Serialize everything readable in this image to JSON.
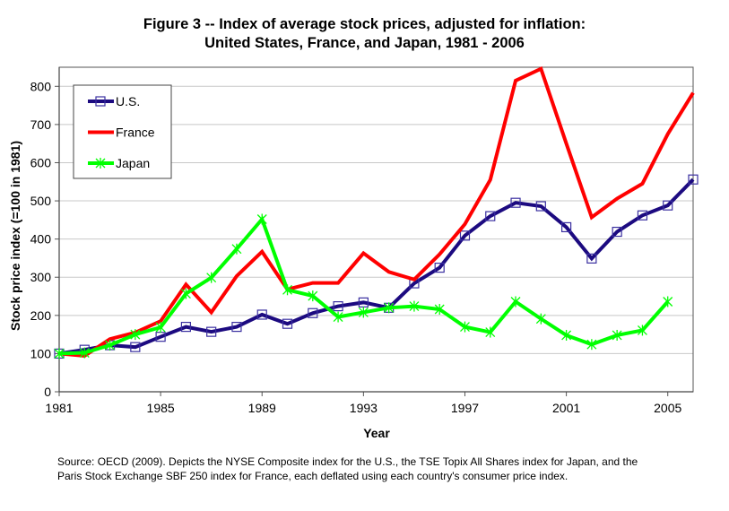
{
  "chart_data": {
    "type": "line",
    "title": "Figure 3 -- Index of average stock prices, adjusted for inflation:",
    "subtitle": "United States, France, and Japan, 1981 - 2006",
    "xlabel": "Year",
    "ylabel": "Stock price index (=100 in 1981)",
    "x": [
      1981,
      1982,
      1983,
      1984,
      1985,
      1986,
      1987,
      1988,
      1989,
      1990,
      1991,
      1992,
      1993,
      1994,
      1995,
      1996,
      1997,
      1998,
      1999,
      2000,
      2001,
      2002,
      2003,
      2004,
      2005,
      2006
    ],
    "xlim": [
      1981,
      2006
    ],
    "xticks": [
      "1981",
      "1985",
      "1989",
      "1993",
      "1997",
      "2001",
      "2005"
    ],
    "ylim": [
      0,
      850
    ],
    "yticks": [
      "0",
      "100",
      "200",
      "300",
      "400",
      "500",
      "600",
      "700",
      "800"
    ],
    "grid": "horizontal",
    "legend_position": "top-left",
    "series": [
      {
        "name": "U.S.",
        "color": "#1c0a80",
        "marker": "square",
        "values": [
          100,
          110,
          122,
          117,
          144,
          170,
          157,
          170,
          202,
          178,
          206,
          224,
          234,
          220,
          284,
          325,
          409,
          460,
          495,
          486,
          431,
          349,
          419,
          462,
          488,
          556
        ]
      },
      {
        "name": "France",
        "color": "#ff0000",
        "marker": "none",
        "values": [
          100,
          94,
          138,
          155,
          185,
          281,
          208,
          303,
          367,
          268,
          285,
          285,
          363,
          314,
          294,
          360,
          439,
          555,
          815,
          846,
          650,
          457,
          506,
          545,
          675,
          783
        ]
      },
      {
        "name": "Japan",
        "color": "#00ff00",
        "marker": "star",
        "values": [
          100,
          102,
          122,
          150,
          169,
          257,
          299,
          374,
          452,
          267,
          251,
          196,
          208,
          220,
          224,
          216,
          170,
          156,
          236,
          191,
          148,
          124,
          148,
          161,
          236,
          null
        ]
      }
    ]
  },
  "source_note": [
    "Source: OECD (2009).  Depicts the NYSE Composite index for the U.S., the TSE Topix All Shares index for Japan, and the",
    "Paris Stock Exchange SBF 250 index for France, each deflated using each country's consumer price index."
  ]
}
